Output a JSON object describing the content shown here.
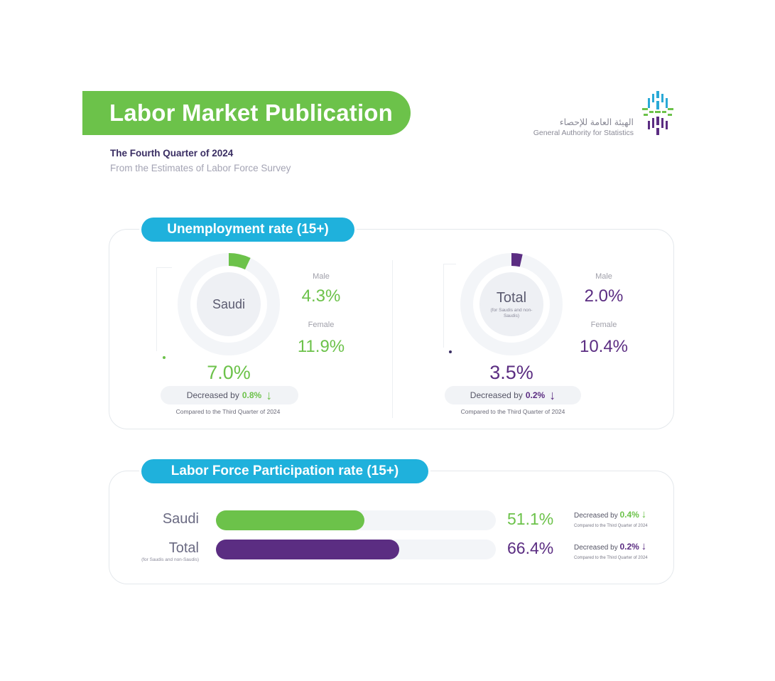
{
  "header": {
    "title": "Labor Market Publication",
    "subtitle": "The Fourth Quarter of 2024",
    "source_line": "From the Estimates of Labor Force Survey"
  },
  "logo": {
    "arabic_name": "الهيئة العامة للإحصاء",
    "english_name": "General Authority for Statistics",
    "icon": "gastat-logo-icon"
  },
  "colors": {
    "green": "#6cc24a",
    "purple": "#5b2d82",
    "blue": "#1fb1dc"
  },
  "unemployment": {
    "section_title": "Unemployment rate (15+)",
    "saudi": {
      "label": "Saudi",
      "male_label": "Male",
      "male_value": "4.3%",
      "female_label": "Female",
      "female_value": "11.9%",
      "rate": "7.0%",
      "change_prefix": "Decreased by",
      "change_value": "0.8%",
      "compared": "Compared to the Third Quarter of 2024"
    },
    "total": {
      "label": "Total",
      "sub_label": "(for Saudis and non-Saudis)",
      "male_label": "Male",
      "male_value": "2.0%",
      "female_label": "Female",
      "female_value": "10.4%",
      "rate": "3.5%",
      "change_prefix": "Decreased by",
      "change_value": "0.2%",
      "compared": "Compared to the Third Quarter of 2024"
    }
  },
  "participation": {
    "section_title": "Labor Force Participation rate (15+)",
    "saudi": {
      "label": "Saudi",
      "value": "51.1%",
      "change_prefix": "Decreased by",
      "change_value": "0.4%",
      "compared": "Compared to the Third Quarter of 2024"
    },
    "total": {
      "label": "Total",
      "sub_label": "(for Saudis and non-Saudis)",
      "value": "66.4%",
      "change_prefix": "Decreased by",
      "change_value": "0.2%",
      "compared": "Compared to the Third Quarter of 2024"
    }
  },
  "chart_data": [
    {
      "type": "pie",
      "title": "Unemployment rate (15+)",
      "categories": [
        "Saudi",
        "Total"
      ],
      "values": [
        7.0,
        3.5
      ],
      "breakdown": {
        "Saudi": {
          "Male": 4.3,
          "Female": 11.9
        },
        "Total": {
          "Male": 2.0,
          "Female": 10.4
        }
      },
      "change": {
        "Saudi": -0.8,
        "Total": -0.2
      },
      "unit": "%"
    },
    {
      "type": "bar",
      "orientation": "horizontal",
      "title": "Labor Force Participation rate (15+)",
      "categories": [
        "Saudi",
        "Total"
      ],
      "values": [
        51.1,
        66.4
      ],
      "change": {
        "Saudi": -0.4,
        "Total": -0.2
      },
      "xlim": [
        0,
        100
      ],
      "unit": "%"
    }
  ]
}
